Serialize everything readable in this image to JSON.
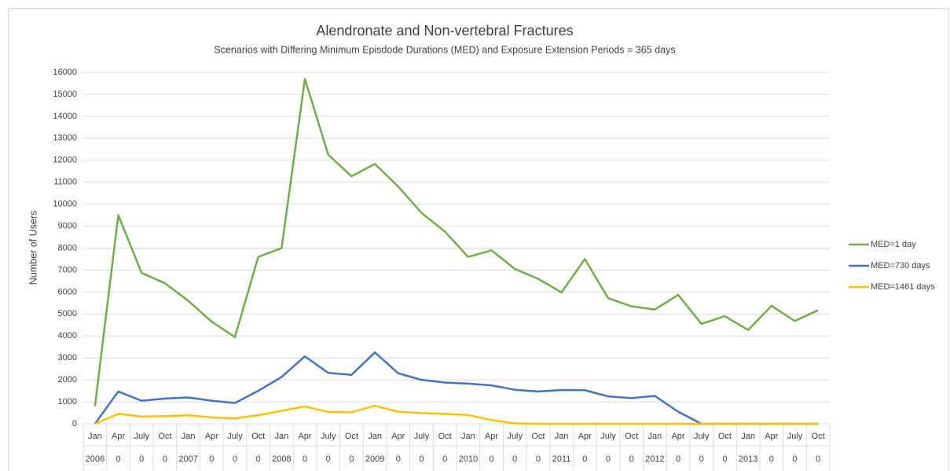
{
  "chart_data": {
    "type": "line",
    "title": "Alendronate and Non-vertebral Fractures",
    "subtitle": "Scenarios with Differing Minimum Episdode Durations (MED) and Exposure Extension Periods = 365 days",
    "y_label": "Number of Users",
    "categories": [
      "Jan",
      "Apr",
      "July",
      "Oct",
      "Jan",
      "Apr",
      "July",
      "Oct",
      "Jan",
      "Apr",
      "July",
      "Oct",
      "Jan",
      "Apr",
      "July",
      "Oct",
      "Jan",
      "Apr",
      "July",
      "Oct",
      "Jan",
      "Apr",
      "July",
      "Oct",
      "Jan",
      "Apr",
      "July",
      "Oct",
      "Jan",
      "Apr",
      "July",
      "Oct"
    ],
    "category_groups": [
      "2006",
      "0",
      "0",
      "0",
      "2007",
      "0",
      "0",
      "0",
      "2008",
      "0",
      "0",
      "0",
      "2009",
      "0",
      "0",
      "0",
      "2010",
      "0",
      "0",
      "0",
      "2011",
      "0",
      "0",
      "0",
      "2012",
      "0",
      "0",
      "0",
      "2013",
      "0",
      "0",
      "0"
    ],
    "series": [
      {
        "name": "MED=1 day",
        "color": "#70ad47",
        "values": [
          800,
          9500,
          6870,
          6400,
          5600,
          4650,
          3950,
          7600,
          8000,
          15700,
          12250,
          11270,
          11830,
          10800,
          9600,
          8750,
          7600,
          7900,
          7050,
          6600,
          5980,
          7500,
          5720,
          5350,
          5200,
          5870,
          4550,
          4900,
          4270,
          5370,
          4680,
          5170
        ]
      },
      {
        "name": "MED=730 days",
        "color": "#4472c4",
        "values": [
          0,
          1470,
          1050,
          1150,
          1200,
          1050,
          950,
          1500,
          2130,
          3070,
          2320,
          2230,
          3250,
          2300,
          2000,
          1880,
          1830,
          1750,
          1550,
          1470,
          1540,
          1530,
          1250,
          1170,
          1270,
          550,
          0,
          0,
          0,
          0,
          0,
          0
        ]
      },
      {
        "name": "MED=1461 days",
        "color": "#ffc000",
        "values": [
          0,
          450,
          330,
          350,
          390,
          290,
          250,
          390,
          590,
          790,
          540,
          530,
          820,
          550,
          490,
          450,
          400,
          170,
          20,
          0,
          0,
          0,
          0,
          0,
          0,
          0,
          0,
          0,
          0,
          0,
          0,
          0
        ]
      }
    ],
    "ylim": [
      0,
      16000
    ],
    "yticks": [
      0,
      1000,
      2000,
      3000,
      4000,
      5000,
      6000,
      7000,
      8000,
      9000,
      10000,
      11000,
      12000,
      13000,
      14000,
      15000,
      16000
    ],
    "grid": true,
    "legend": "right"
  }
}
